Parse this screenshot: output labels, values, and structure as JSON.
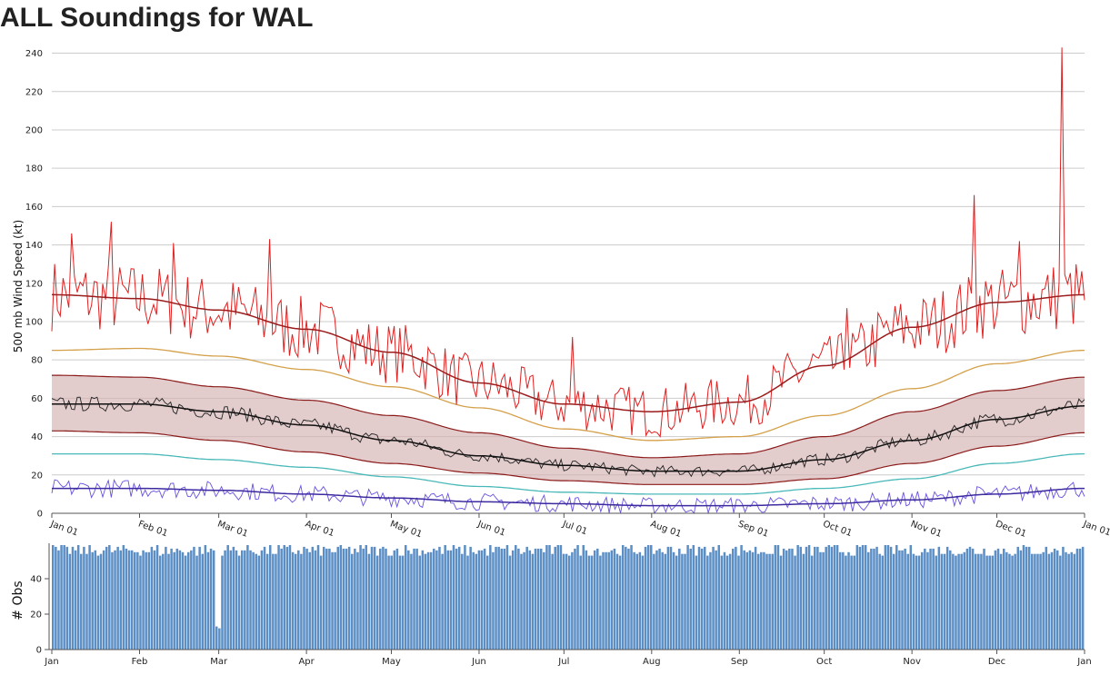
{
  "title": "ALL Soundings for WAL",
  "colors": {
    "max": "#e02020",
    "max_smooth": "#9b1c1c",
    "p90": "#d4a04a",
    "band_fill": "#d4b0b0",
    "band_edge": "#8b1a1a",
    "mean": "#222222",
    "p10": "#4ab8b8",
    "min": "#6a50e0",
    "min_smooth": "#3c2aa0",
    "obs_bar": "#5b8ec5",
    "grid": "#cccccc"
  },
  "chart_data": [
    {
      "type": "line",
      "ylabel": "500 mb Wind Speed (kt)",
      "ylim": [
        0,
        245
      ],
      "yticks": [
        0,
        20,
        40,
        60,
        80,
        100,
        120,
        140,
        160,
        180,
        200,
        220,
        240
      ],
      "xlim": [
        "Jan 01",
        "Jan 01 (next year)"
      ],
      "xticks": [
        "Jan 01",
        "Feb 01",
        "Mar 01",
        "Apr 01",
        "May 01",
        "Jun 01",
        "Jul 01",
        "Aug 01",
        "Sep 01",
        "Oct 01",
        "Nov 01",
        "Dec 01",
        "Jan 01"
      ],
      "grid": "horizontal",
      "curves": {
        "max_smooth": {
          "doy": [
            1,
            32,
            60,
            91,
            121,
            152,
            182,
            213,
            244,
            274,
            305,
            335,
            366
          ],
          "values": [
            114,
            112,
            106,
            96,
            84,
            68,
            57,
            53,
            58,
            77,
            97,
            110,
            114
          ]
        },
        "max_daily_anchors": {
          "doy": [
            1,
            32,
            60,
            91,
            121,
            152,
            182,
            213,
            244,
            274,
            305,
            335,
            366
          ],
          "values": [
            114,
            112,
            106,
            96,
            84,
            68,
            57,
            53,
            58,
            77,
            97,
            110,
            114
          ]
        },
        "p90": {
          "doy": [
            1,
            32,
            60,
            91,
            121,
            152,
            182,
            213,
            244,
            274,
            305,
            335,
            366
          ],
          "values": [
            85,
            86,
            82,
            75,
            66,
            55,
            44,
            38,
            40,
            51,
            65,
            78,
            85
          ]
        },
        "band_upper": {
          "doy": [
            1,
            32,
            60,
            91,
            121,
            152,
            182,
            213,
            244,
            274,
            305,
            335,
            366
          ],
          "values": [
            72,
            71,
            66,
            59,
            51,
            42,
            34,
            29,
            31,
            40,
            53,
            64,
            71
          ]
        },
        "mean": {
          "doy": [
            1,
            32,
            60,
            91,
            121,
            152,
            182,
            213,
            244,
            274,
            305,
            335,
            366
          ],
          "values": [
            57,
            57,
            53,
            46,
            38,
            30,
            25,
            22,
            22,
            28,
            38,
            49,
            56
          ]
        },
        "band_lower": {
          "doy": [
            1,
            32,
            60,
            91,
            121,
            152,
            182,
            213,
            244,
            274,
            305,
            335,
            366
          ],
          "values": [
            43,
            42,
            38,
            32,
            26,
            21,
            17,
            15,
            15,
            18,
            26,
            35,
            42
          ]
        },
        "p10": {
          "doy": [
            1,
            32,
            60,
            91,
            121,
            152,
            182,
            213,
            244,
            274,
            305,
            335,
            366
          ],
          "values": [
            31,
            31,
            28,
            24,
            19,
            14,
            11,
            10,
            10,
            13,
            18,
            26,
            31
          ]
        },
        "min_smooth": {
          "doy": [
            1,
            32,
            60,
            91,
            121,
            152,
            182,
            213,
            244,
            274,
            305,
            335,
            366
          ],
          "values": [
            13,
            13,
            12,
            10,
            8,
            6,
            5,
            4,
            4,
            5,
            7,
            10,
            13
          ]
        }
      },
      "daily": {
        "max_spikes": {
          "doy": [
            8,
            22,
            44,
            78,
            185,
            282,
            327,
            343,
            358
          ],
          "values": [
            146,
            152,
            141,
            143,
            92,
            107,
            166,
            142,
            243
          ]
        },
        "max_amplitude": 14,
        "mean_amplitude": 4,
        "min_amplitude": 7,
        "seed": 7
      }
    },
    {
      "type": "bar",
      "ylabel": "# Obs",
      "ylim": [
        0,
        60
      ],
      "yticks": [
        0,
        20,
        40
      ],
      "xticks": [
        "Jan",
        "Feb",
        "Mar",
        "Apr",
        "May",
        "Jun",
        "Jul",
        "Aug",
        "Sep",
        "Oct",
        "Nov",
        "Dec",
        "Jan"
      ],
      "typical_count": 56,
      "count_range": [
        53,
        59
      ],
      "outliers": {
        "doy": [
          59,
          60
        ],
        "values": [
          13,
          12
        ]
      }
    }
  ]
}
